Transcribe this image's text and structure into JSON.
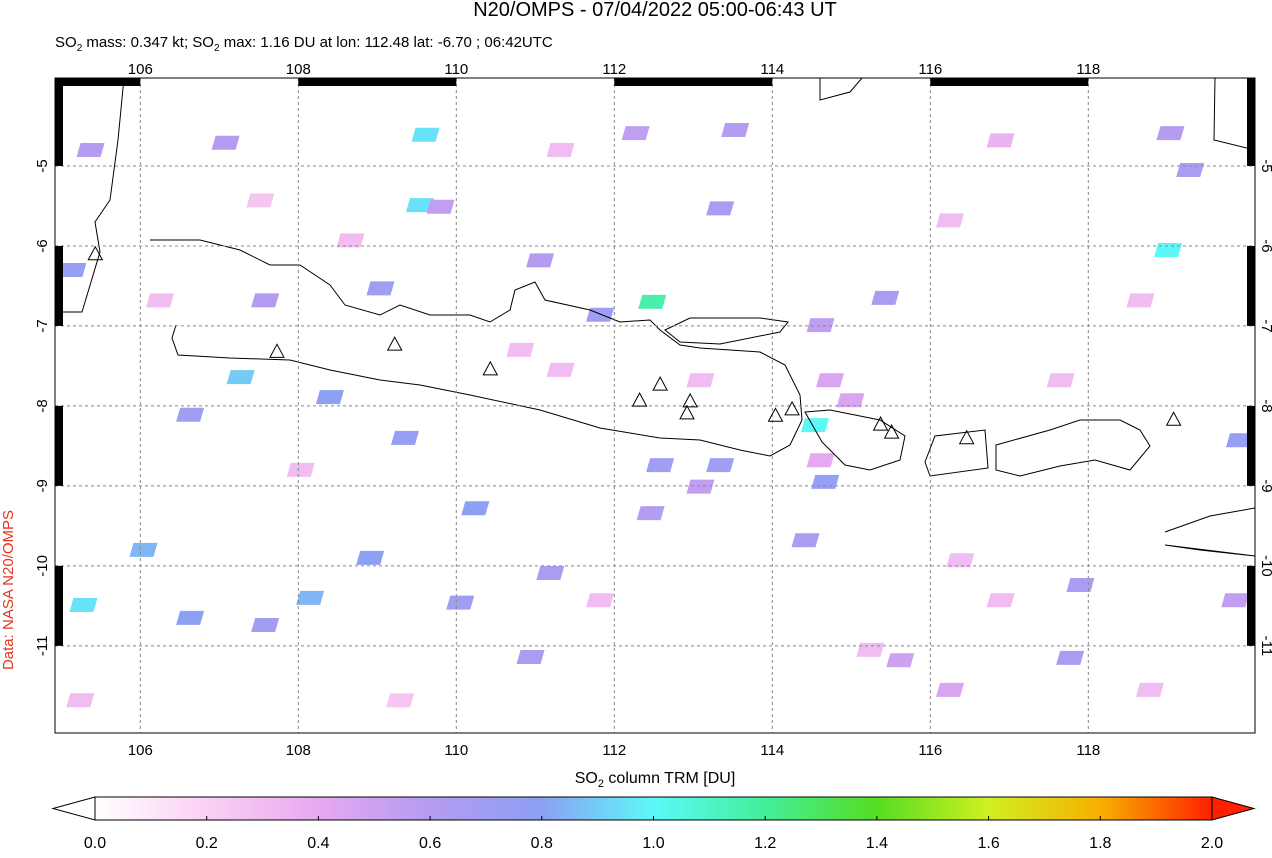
{
  "chart_data": {
    "type": "map",
    "title": "N20/OMPS - 07/04/2022 05:00-06:43 UT",
    "subtitle": [
      "SO",
      "2",
      " mass: 0.347 kt; SO",
      "2",
      " max: 1.16 DU at lon: 112.48 lat: -6.70 ; 06:42UTC"
    ],
    "side_label": "Data: NASA N20/OMPS",
    "xlim": [
      104.92,
      120.11
    ],
    "ylim": [
      -12.09,
      -3.9
    ],
    "xticks": [
      106,
      108,
      110,
      112,
      114,
      116,
      118
    ],
    "yticks": [
      -5,
      -6,
      -7,
      -8,
      -9,
      -10,
      -11
    ],
    "grid": true,
    "pixels": [
      {
        "lon": 109.61,
        "lat": -4.61,
        "value": 0.95
      },
      {
        "lon": 109.54,
        "lat": -5.49,
        "value": 0.95
      },
      {
        "lon": 112.48,
        "lat": -6.7,
        "value": 1.16
      },
      {
        "lon": 119.01,
        "lat": -6.05,
        "value": 1.0
      },
      {
        "lon": 114.54,
        "lat": -8.24,
        "value": 1.0
      },
      {
        "lon": 107.27,
        "lat": -7.64,
        "value": 0.9
      },
      {
        "lon": 105.14,
        "lat": -6.3,
        "value": 0.75
      },
      {
        "lon": 105.28,
        "lat": -10.49,
        "value": 0.95
      },
      {
        "lon": 108.15,
        "lat": -10.4,
        "value": 0.85
      },
      {
        "lon": 113.34,
        "lat": -5.53,
        "value": 0.65
      },
      {
        "lon": 115.43,
        "lat": -6.65,
        "value": 0.65
      },
      {
        "lon": 114.67,
        "lat": -8.95,
        "value": 0.75
      },
      {
        "lon": 117.9,
        "lat": -10.24,
        "value": 0.65
      },
      {
        "lon": 117.77,
        "lat": -11.15,
        "value": 0.65
      },
      {
        "lon": 110.94,
        "lat": -11.14,
        "value": 0.65
      },
      {
        "lon": 111.19,
        "lat": -10.09,
        "value": 0.65
      },
      {
        "lon": 110.05,
        "lat": -10.46,
        "value": 0.7
      },
      {
        "lon": 110.24,
        "lat": -9.28,
        "value": 0.8
      },
      {
        "lon": 108.91,
        "lat": -9.9,
        "value": 0.8
      },
      {
        "lon": 109.35,
        "lat": -8.4,
        "value": 0.75
      },
      {
        "lon": 108.4,
        "lat": -7.89,
        "value": 0.8
      },
      {
        "lon": 109.04,
        "lat": -6.53,
        "value": 0.7
      },
      {
        "lon": 107.58,
        "lat": -6.68,
        "value": 0.6
      },
      {
        "lon": 111.06,
        "lat": -6.18,
        "value": 0.6
      },
      {
        "lon": 111.82,
        "lat": -6.86,
        "value": 0.7
      },
      {
        "lon": 112.58,
        "lat": -8.74,
        "value": 0.7
      },
      {
        "lon": 113.34,
        "lat": -8.74,
        "value": 0.7
      },
      {
        "lon": 113.09,
        "lat": -9.01,
        "value": 0.55
      },
      {
        "lon": 114.42,
        "lat": -9.68,
        "value": 0.65
      },
      {
        "lon": 112.46,
        "lat": -9.34,
        "value": 0.6
      },
      {
        "lon": 113.53,
        "lat": -4.55,
        "value": 0.6
      },
      {
        "lon": 112.27,
        "lat": -4.59,
        "value": 0.55
      },
      {
        "lon": 119.04,
        "lat": -4.59,
        "value": 0.6
      },
      {
        "lon": 119.29,
        "lat": -5.05,
        "value": 0.65
      },
      {
        "lon": 119.92,
        "lat": -8.43,
        "value": 0.75
      },
      {
        "lon": 119.86,
        "lat": -10.43,
        "value": 0.55
      },
      {
        "lon": 107.08,
        "lat": -4.71,
        "value": 0.6
      },
      {
        "lon": 105.37,
        "lat": -4.8,
        "value": 0.6
      },
      {
        "lon": 106.63,
        "lat": -8.11,
        "value": 0.7
      },
      {
        "lon": 114.61,
        "lat": -6.99,
        "value": 0.55
      },
      {
        "lon": 115.62,
        "lat": -11.18,
        "value": 0.5
      },
      {
        "lon": 116.25,
        "lat": -11.55,
        "value": 0.45
      },
      {
        "lon": 106.04,
        "lat": -9.8,
        "value": 0.85
      },
      {
        "lon": 106.63,
        "lat": -10.65,
        "value": 0.8
      },
      {
        "lon": 107.58,
        "lat": -10.74,
        "value": 0.7
      },
      {
        "lon": 109.8,
        "lat": -5.51,
        "value": 0.55
      },
      {
        "lon": 110.81,
        "lat": -7.3,
        "value": 0.3
      },
      {
        "lon": 111.32,
        "lat": -7.55,
        "value": 0.3
      },
      {
        "lon": 115.24,
        "lat": -11.05,
        "value": 0.3
      },
      {
        "lon": 116.38,
        "lat": -9.93,
        "value": 0.3
      },
      {
        "lon": 116.89,
        "lat": -10.43,
        "value": 0.3
      },
      {
        "lon": 114.61,
        "lat": -8.68,
        "value": 0.4
      },
      {
        "lon": 114.73,
        "lat": -7.68,
        "value": 0.45
      },
      {
        "lon": 114.99,
        "lat": -7.93,
        "value": 0.45
      },
      {
        "lon": 118.66,
        "lat": -6.68,
        "value": 0.3
      },
      {
        "lon": 117.65,
        "lat": -7.68,
        "value": 0.3
      },
      {
        "lon": 108.66,
        "lat": -5.93,
        "value": 0.3
      },
      {
        "lon": 106.25,
        "lat": -6.68,
        "value": 0.3
      },
      {
        "lon": 108.03,
        "lat": -8.8,
        "value": 0.3
      },
      {
        "lon": 111.82,
        "lat": -10.43,
        "value": 0.3
      },
      {
        "lon": 113.09,
        "lat": -7.68,
        "value": 0.3
      },
      {
        "lon": 116.25,
        "lat": -5.68,
        "value": 0.3
      },
      {
        "lon": 116.89,
        "lat": -4.68,
        "value": 0.35
      },
      {
        "lon": 105.24,
        "lat": -11.68,
        "value": 0.3
      },
      {
        "lon": 109.29,
        "lat": -11.68,
        "value": 0.25
      },
      {
        "lon": 118.78,
        "lat": -11.55,
        "value": 0.3
      },
      {
        "lon": 111.32,
        "lat": -4.8,
        "value": 0.3
      },
      {
        "lon": 107.52,
        "lat": -5.43,
        "value": 0.25
      }
    ],
    "volcanoes": [
      {
        "lon": 105.43,
        "lat": -6.11
      },
      {
        "lon": 107.73,
        "lat": -7.33
      },
      {
        "lon": 109.22,
        "lat": -7.24
      },
      {
        "lon": 110.43,
        "lat": -7.55
      },
      {
        "lon": 112.32,
        "lat": -7.94
      },
      {
        "lon": 112.58,
        "lat": -7.74
      },
      {
        "lon": 112.96,
        "lat": -7.95
      },
      {
        "lon": 112.92,
        "lat": -8.1
      },
      {
        "lon": 114.04,
        "lat": -8.13
      },
      {
        "lon": 114.25,
        "lat": -8.05
      },
      {
        "lon": 115.37,
        "lat": -8.24
      },
      {
        "lon": 115.51,
        "lat": -8.34
      },
      {
        "lon": 116.46,
        "lat": -8.41
      },
      {
        "lon": 119.08,
        "lat": -8.18
      }
    ],
    "colorbar": {
      "label": [
        "SO",
        "2",
        " column TRM [DU]"
      ],
      "lim": [
        0,
        2
      ],
      "ticks": [
        {
          "value": 0,
          "label": "0.0"
        },
        {
          "value": 0.2,
          "label": "0.2"
        },
        {
          "value": 0.4,
          "label": "0.4"
        },
        {
          "value": 0.6,
          "label": "0.6"
        },
        {
          "value": 0.8,
          "label": "0.8"
        },
        {
          "value": 1,
          "label": "1.0"
        },
        {
          "value": 1.2,
          "label": "1.2"
        },
        {
          "value": 1.4,
          "label": "1.4"
        },
        {
          "value": 1.6,
          "label": "1.6"
        },
        {
          "value": 1.8,
          "label": "1.8"
        },
        {
          "value": 2,
          "label": "2.0"
        }
      ],
      "colors": [
        "#ffffff",
        "#fbd0f4",
        "#e6a8f0",
        "#b49cf0",
        "#8ca0f4",
        "#5cf8f8",
        "#44ee99",
        "#55dd22",
        "#d0f020",
        "#f8b000",
        "#ff2000"
      ]
    }
  }
}
